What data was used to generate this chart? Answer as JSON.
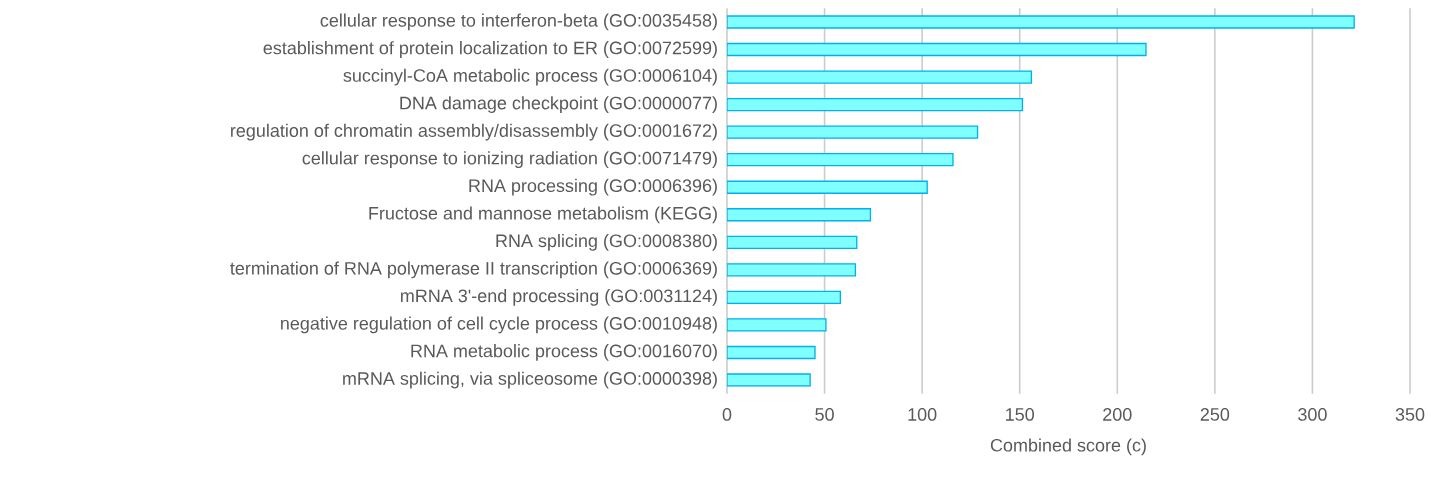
{
  "chart_data": {
    "type": "bar",
    "orientation": "horizontal",
    "xlabel": "Combined score (c)",
    "categories": [
      "cellular response to interferon-beta (GO:0035458)",
      "establishment of protein localization to ER (GO:0072599)",
      "succinyl-CoA metabolic process (GO:0006104)",
      "DNA damage checkpoint (GO:0000077)",
      "regulation of chromatin assembly/disassembly (GO:0001672)",
      "cellular response to ionizing radiation (GO:0071479)",
      "RNA processing (GO:0006396)",
      "Fructose and mannose metabolism (KEGG)",
      "RNA splicing (GO:0008380)",
      "termination of RNA polymerase II transcription (GO:0006369)",
      "mRNA 3'-end processing (GO:0031124)",
      "negative regulation of cell cycle process (GO:0010948)",
      "RNA metabolic process (GO:0016070)",
      "mRNA splicing, via spliceosome (GO:0000398)"
    ],
    "values": [
      321.4,
      214.7,
      156,
      151.4,
      128.4,
      115.8,
      102.6,
      73.5,
      66.5,
      65.8,
      58.1,
      50.7,
      45.1,
      42.6
    ],
    "color": "#7fffff",
    "xlim": [
      0,
      350
    ],
    "xticks": [
      0,
      50,
      100,
      150,
      200,
      250,
      300,
      350
    ],
    "grid": "x"
  }
}
